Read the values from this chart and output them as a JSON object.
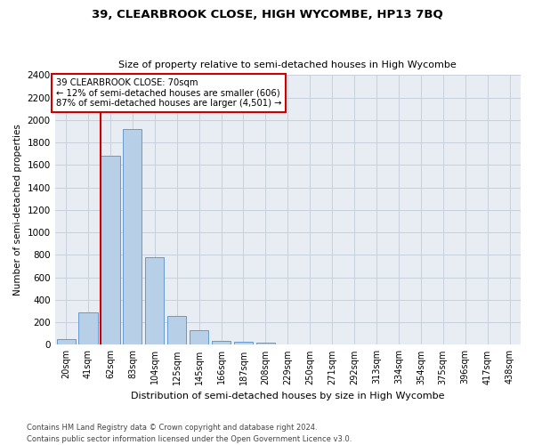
{
  "title": "39, CLEARBROOK CLOSE, HIGH WYCOMBE, HP13 7BQ",
  "subtitle": "Size of property relative to semi-detached houses in High Wycombe",
  "xlabel": "Distribution of semi-detached houses by size in High Wycombe",
  "ylabel": "Number of semi-detached properties",
  "bar_labels": [
    "20sqm",
    "41sqm",
    "62sqm",
    "83sqm",
    "104sqm",
    "125sqm",
    "145sqm",
    "166sqm",
    "187sqm",
    "208sqm",
    "229sqm",
    "250sqm",
    "271sqm",
    "292sqm",
    "313sqm",
    "334sqm",
    "354sqm",
    "375sqm",
    "396sqm",
    "417sqm",
    "438sqm"
  ],
  "bar_values": [
    50,
    290,
    1680,
    1920,
    780,
    255,
    130,
    35,
    25,
    20,
    0,
    0,
    0,
    0,
    0,
    0,
    0,
    0,
    0,
    0,
    0
  ],
  "bar_color": "#b8cfe8",
  "bar_edge_color": "#6699cc",
  "vline_x": 2.0,
  "vline_color": "#cc0000",
  "annotation_title": "39 CLEARBROOK CLOSE: 70sqm",
  "annotation_line1": "← 12% of semi-detached houses are smaller (606)",
  "annotation_line2": "87% of semi-detached houses are larger (4,501) →",
  "annotation_box_color": "#ffffff",
  "annotation_box_edge": "#cc0000",
  "ylim": [
    0,
    2400
  ],
  "yticks": [
    0,
    200,
    400,
    600,
    800,
    1000,
    1200,
    1400,
    1600,
    1800,
    2000,
    2200,
    2400
  ],
  "footnote1": "Contains HM Land Registry data © Crown copyright and database right 2024.",
  "footnote2": "Contains public sector information licensed under the Open Government Licence v3.0.",
  "bg_color": "#ffffff",
  "ax_bg_color": "#e8edf4",
  "grid_color": "#c8d0dc"
}
